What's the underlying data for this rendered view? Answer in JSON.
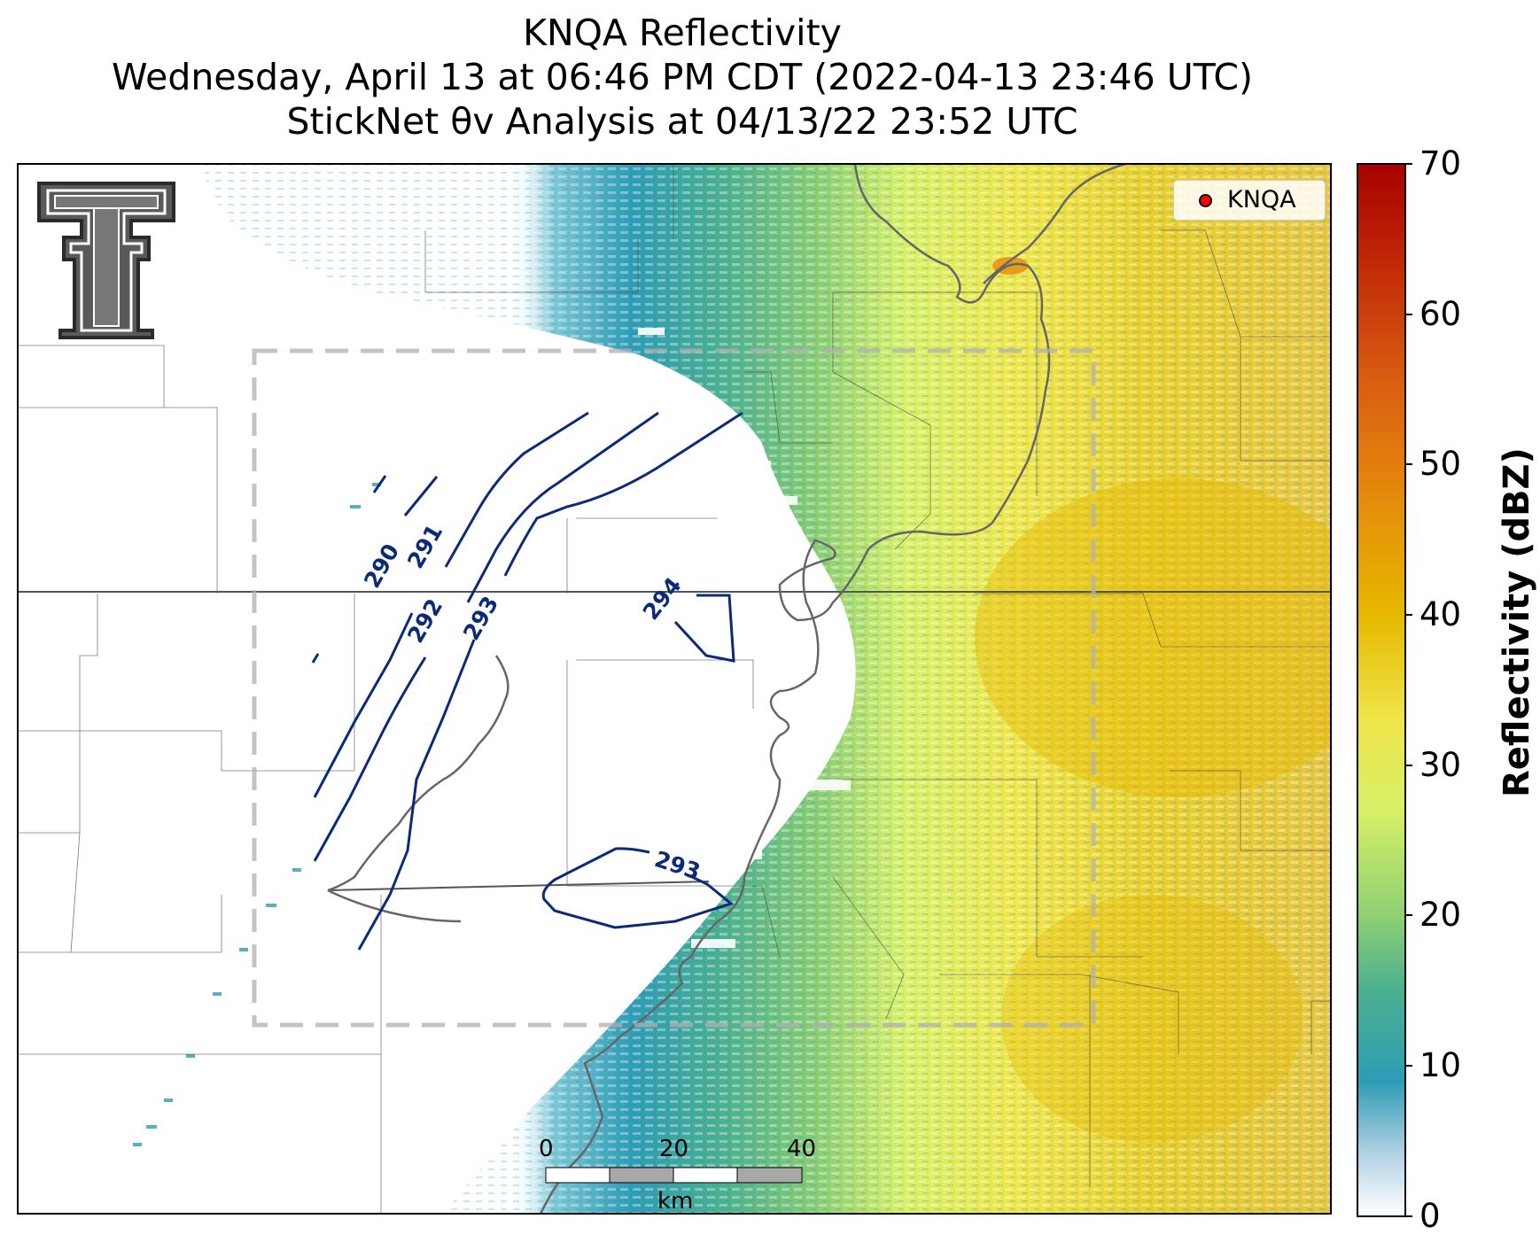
{
  "title": {
    "line1": "KNQA Reflectivity",
    "line2": "Wednesday, April 13 at 06:46 PM CDT (2022-04-13 23:46 UTC)",
    "line3": "StickNet θv Analysis at 04/13/22 23:52 UTC"
  },
  "legend": {
    "label": "KNQA",
    "marker_color": "#ff0000"
  },
  "colorbar": {
    "title": "Reflectivity (dBZ)",
    "min": 0,
    "max": 70,
    "ticks": [
      "0",
      "10",
      "20",
      "30",
      "40",
      "50",
      "60",
      "70"
    ],
    "stops": [
      {
        "value": 0,
        "color": "#ffffff"
      },
      {
        "value": 4,
        "color": "#b7d3e6"
      },
      {
        "value": 9,
        "color": "#2d9cb5"
      },
      {
        "value": 15,
        "color": "#4bb08f"
      },
      {
        "value": 20,
        "color": "#8fd072"
      },
      {
        "value": 27,
        "color": "#d8f067"
      },
      {
        "value": 33,
        "color": "#efe64a"
      },
      {
        "value": 40,
        "color": "#e6b800"
      },
      {
        "value": 48,
        "color": "#e58a0c"
      },
      {
        "value": 56,
        "color": "#d85a12"
      },
      {
        "value": 63,
        "color": "#c22b07"
      },
      {
        "value": 70,
        "color": "#a80000"
      }
    ]
  },
  "contours": {
    "color": "#0b2a7a",
    "labels": [
      "290",
      "291",
      "292",
      "293",
      "294",
      "293"
    ]
  },
  "scale_bar": {
    "ticks": [
      "0",
      "20",
      "40"
    ],
    "unit": "km"
  },
  "logo": {
    "name": "Texas Tech Double T"
  }
}
